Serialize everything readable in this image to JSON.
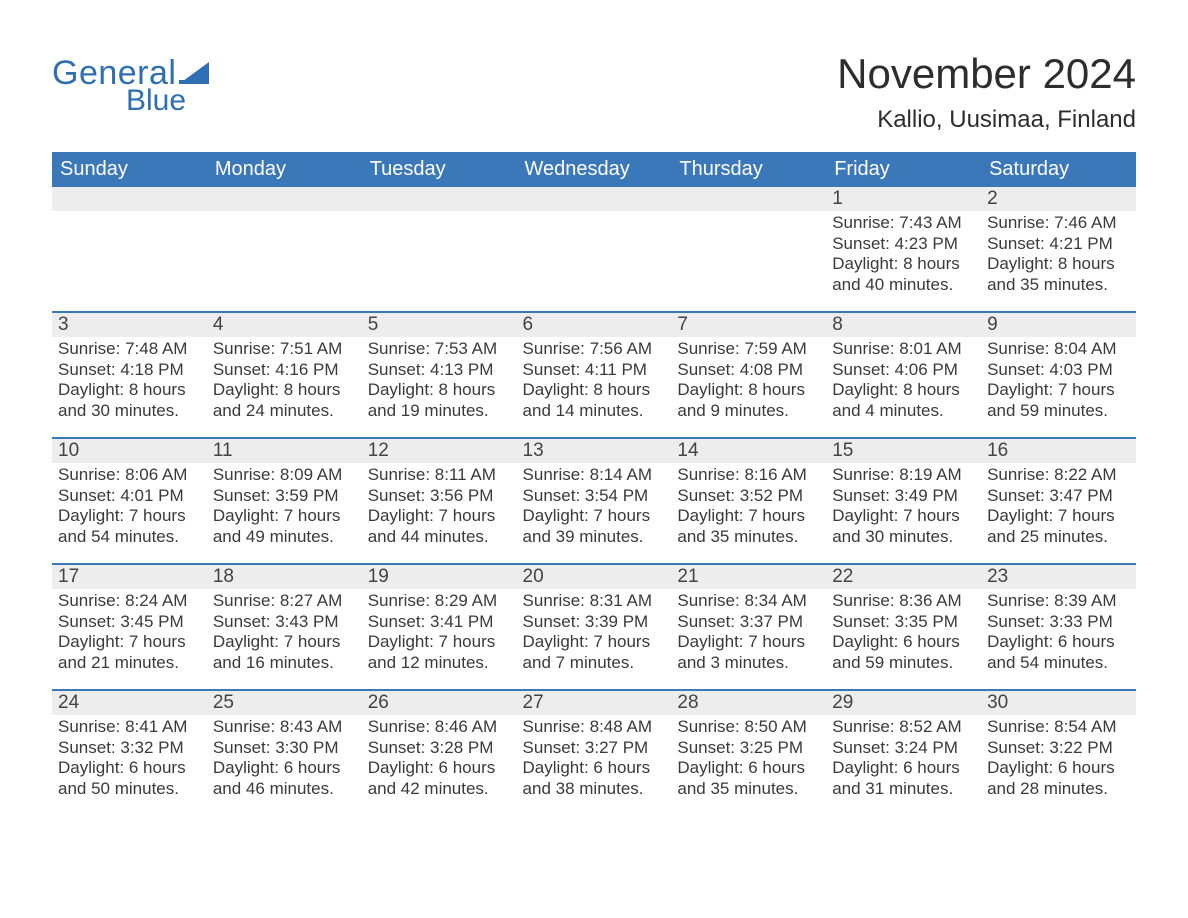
{
  "brand": {
    "word1": "General",
    "word2": "Blue",
    "color": "#2e6fb3"
  },
  "title": "November 2024",
  "subtitle": "Kallio, Uusimaa, Finland",
  "colors": {
    "header_bg": "#3b78b9",
    "header_text": "#ffffff",
    "daynum_bg": "#ededed",
    "rule": "#3b78b9",
    "body_text": "#3a3a3a",
    "page_bg": "#ffffff"
  },
  "typography": {
    "title_fontsize": 42,
    "subtitle_fontsize": 24,
    "header_fontsize": 20,
    "daynum_fontsize": 19,
    "body_fontsize": 17
  },
  "weekdays": [
    "Sunday",
    "Monday",
    "Tuesday",
    "Wednesday",
    "Thursday",
    "Friday",
    "Saturday"
  ],
  "weeks": [
    [
      null,
      null,
      null,
      null,
      null,
      {
        "n": "1",
        "sunrise": "7:43 AM",
        "sunset": "4:23 PM",
        "daylight1": "Daylight: 8 hours",
        "daylight2": "and 40 minutes."
      },
      {
        "n": "2",
        "sunrise": "7:46 AM",
        "sunset": "4:21 PM",
        "daylight1": "Daylight: 8 hours",
        "daylight2": "and 35 minutes."
      }
    ],
    [
      {
        "n": "3",
        "sunrise": "7:48 AM",
        "sunset": "4:18 PM",
        "daylight1": "Daylight: 8 hours",
        "daylight2": "and 30 minutes."
      },
      {
        "n": "4",
        "sunrise": "7:51 AM",
        "sunset": "4:16 PM",
        "daylight1": "Daylight: 8 hours",
        "daylight2": "and 24 minutes."
      },
      {
        "n": "5",
        "sunrise": "7:53 AM",
        "sunset": "4:13 PM",
        "daylight1": "Daylight: 8 hours",
        "daylight2": "and 19 minutes."
      },
      {
        "n": "6",
        "sunrise": "7:56 AM",
        "sunset": "4:11 PM",
        "daylight1": "Daylight: 8 hours",
        "daylight2": "and 14 minutes."
      },
      {
        "n": "7",
        "sunrise": "7:59 AM",
        "sunset": "4:08 PM",
        "daylight1": "Daylight: 8 hours",
        "daylight2": "and 9 minutes."
      },
      {
        "n": "8",
        "sunrise": "8:01 AM",
        "sunset": "4:06 PM",
        "daylight1": "Daylight: 8 hours",
        "daylight2": "and 4 minutes."
      },
      {
        "n": "9",
        "sunrise": "8:04 AM",
        "sunset": "4:03 PM",
        "daylight1": "Daylight: 7 hours",
        "daylight2": "and 59 minutes."
      }
    ],
    [
      {
        "n": "10",
        "sunrise": "8:06 AM",
        "sunset": "4:01 PM",
        "daylight1": "Daylight: 7 hours",
        "daylight2": "and 54 minutes."
      },
      {
        "n": "11",
        "sunrise": "8:09 AM",
        "sunset": "3:59 PM",
        "daylight1": "Daylight: 7 hours",
        "daylight2": "and 49 minutes."
      },
      {
        "n": "12",
        "sunrise": "8:11 AM",
        "sunset": "3:56 PM",
        "daylight1": "Daylight: 7 hours",
        "daylight2": "and 44 minutes."
      },
      {
        "n": "13",
        "sunrise": "8:14 AM",
        "sunset": "3:54 PM",
        "daylight1": "Daylight: 7 hours",
        "daylight2": "and 39 minutes."
      },
      {
        "n": "14",
        "sunrise": "8:16 AM",
        "sunset": "3:52 PM",
        "daylight1": "Daylight: 7 hours",
        "daylight2": "and 35 minutes."
      },
      {
        "n": "15",
        "sunrise": "8:19 AM",
        "sunset": "3:49 PM",
        "daylight1": "Daylight: 7 hours",
        "daylight2": "and 30 minutes."
      },
      {
        "n": "16",
        "sunrise": "8:22 AM",
        "sunset": "3:47 PM",
        "daylight1": "Daylight: 7 hours",
        "daylight2": "and 25 minutes."
      }
    ],
    [
      {
        "n": "17",
        "sunrise": "8:24 AM",
        "sunset": "3:45 PM",
        "daylight1": "Daylight: 7 hours",
        "daylight2": "and 21 minutes."
      },
      {
        "n": "18",
        "sunrise": "8:27 AM",
        "sunset": "3:43 PM",
        "daylight1": "Daylight: 7 hours",
        "daylight2": "and 16 minutes."
      },
      {
        "n": "19",
        "sunrise": "8:29 AM",
        "sunset": "3:41 PM",
        "daylight1": "Daylight: 7 hours",
        "daylight2": "and 12 minutes."
      },
      {
        "n": "20",
        "sunrise": "8:31 AM",
        "sunset": "3:39 PM",
        "daylight1": "Daylight: 7 hours",
        "daylight2": "and 7 minutes."
      },
      {
        "n": "21",
        "sunrise": "8:34 AM",
        "sunset": "3:37 PM",
        "daylight1": "Daylight: 7 hours",
        "daylight2": "and 3 minutes."
      },
      {
        "n": "22",
        "sunrise": "8:36 AM",
        "sunset": "3:35 PM",
        "daylight1": "Daylight: 6 hours",
        "daylight2": "and 59 minutes."
      },
      {
        "n": "23",
        "sunrise": "8:39 AM",
        "sunset": "3:33 PM",
        "daylight1": "Daylight: 6 hours",
        "daylight2": "and 54 minutes."
      }
    ],
    [
      {
        "n": "24",
        "sunrise": "8:41 AM",
        "sunset": "3:32 PM",
        "daylight1": "Daylight: 6 hours",
        "daylight2": "and 50 minutes."
      },
      {
        "n": "25",
        "sunrise": "8:43 AM",
        "sunset": "3:30 PM",
        "daylight1": "Daylight: 6 hours",
        "daylight2": "and 46 minutes."
      },
      {
        "n": "26",
        "sunrise": "8:46 AM",
        "sunset": "3:28 PM",
        "daylight1": "Daylight: 6 hours",
        "daylight2": "and 42 minutes."
      },
      {
        "n": "27",
        "sunrise": "8:48 AM",
        "sunset": "3:27 PM",
        "daylight1": "Daylight: 6 hours",
        "daylight2": "and 38 minutes."
      },
      {
        "n": "28",
        "sunrise": "8:50 AM",
        "sunset": "3:25 PM",
        "daylight1": "Daylight: 6 hours",
        "daylight2": "and 35 minutes."
      },
      {
        "n": "29",
        "sunrise": "8:52 AM",
        "sunset": "3:24 PM",
        "daylight1": "Daylight: 6 hours",
        "daylight2": "and 31 minutes."
      },
      {
        "n": "30",
        "sunrise": "8:54 AM",
        "sunset": "3:22 PM",
        "daylight1": "Daylight: 6 hours",
        "daylight2": "and 28 minutes."
      }
    ]
  ],
  "labels": {
    "sunrise": "Sunrise: ",
    "sunset": "Sunset: "
  }
}
